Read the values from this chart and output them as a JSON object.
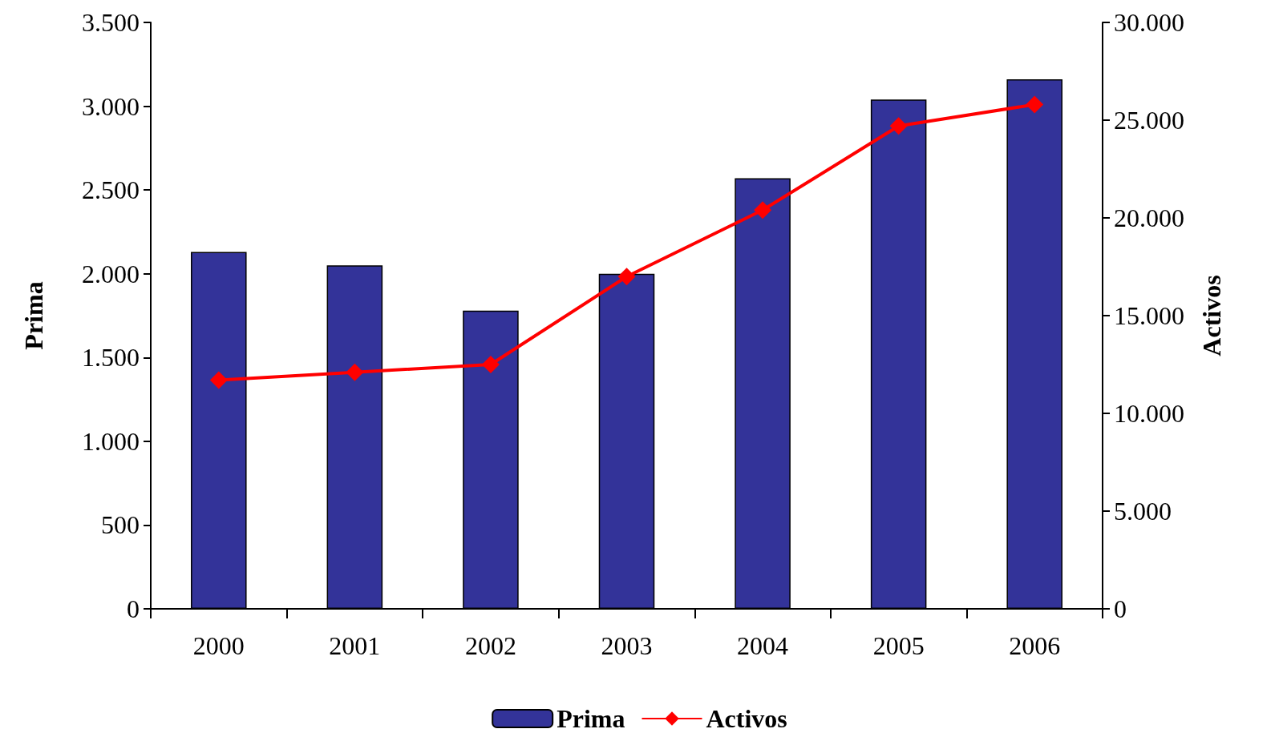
{
  "chart_data": {
    "type": "bar",
    "categories": [
      "2000",
      "2001",
      "2002",
      "2003",
      "2004",
      "2005",
      "2006"
    ],
    "series": [
      {
        "name": "Prima",
        "color": "#333399",
        "values": [
          2130,
          2050,
          1780,
          2000,
          2570,
          3040,
          3160
        ]
      },
      {
        "name": "Activos",
        "type": "line",
        "axis": "y2",
        "color": "#ff0000",
        "values": [
          11700,
          12100,
          12500,
          17000,
          20400,
          24700,
          25800
        ]
      }
    ],
    "ylabel": "Prima",
    "y2label": "Activos",
    "ylim": [
      0,
      3500
    ],
    "yticks": [
      0,
      {
        "value": 500,
        "label": "500"
      },
      {
        "value": 1000,
        "label": "1.000"
      },
      {
        "value": 1500,
        "label": "1.500"
      },
      {
        "value": 2000,
        "label": "2.000"
      },
      {
        "value": 2500,
        "label": "2.500"
      },
      {
        "value": 3000,
        "label": "3.000"
      },
      {
        "value": 3500,
        "label": "3.500"
      }
    ],
    "y2lim": [
      0,
      30000
    ],
    "y2ticks": [
      0,
      {
        "value": 5000,
        "label": "5.000"
      },
      {
        "value": 10000,
        "label": "10.000"
      },
      {
        "value": 15000,
        "label": "15.000"
      },
      {
        "value": 20000,
        "label": "20.000"
      },
      {
        "value": 25000,
        "label": "25.000"
      },
      {
        "value": 30000,
        "label": "30.000"
      }
    ],
    "grid": false,
    "legend": "bottom",
    "marker": "diamond",
    "line_style": "solid"
  }
}
